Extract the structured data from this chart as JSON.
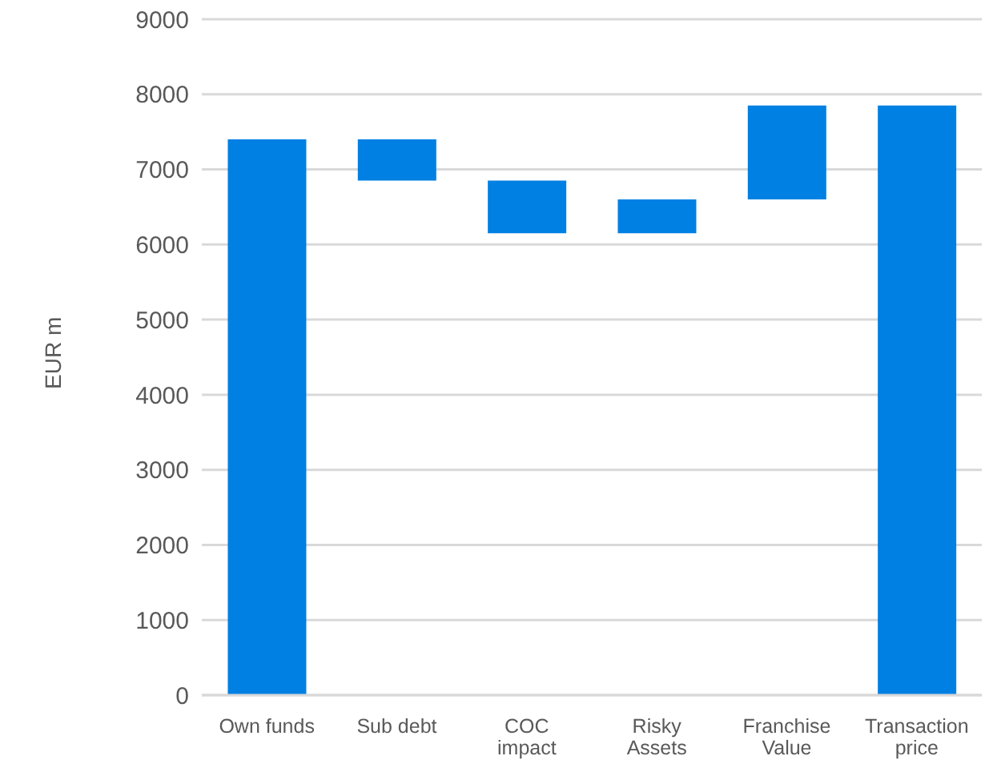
{
  "chart_data": {
    "type": "bar",
    "ylabel": "EUR m",
    "categories": [
      "Own funds",
      "Sub debt",
      "COC impact",
      "Risky Assets",
      "Franchise Value",
      "Transaction price"
    ],
    "values": [
      7400,
      550,
      700,
      450,
      1250,
      7850
    ],
    "base": [
      0,
      6850,
      6150,
      6150,
      6600,
      0
    ],
    "color": "#0080e3",
    "ylim": [
      0,
      9000
    ],
    "yticks": [
      0,
      1000,
      2000,
      3000,
      4000,
      5000,
      6000,
      7000,
      8000,
      9000
    ],
    "grid": "y",
    "legend": false
  }
}
